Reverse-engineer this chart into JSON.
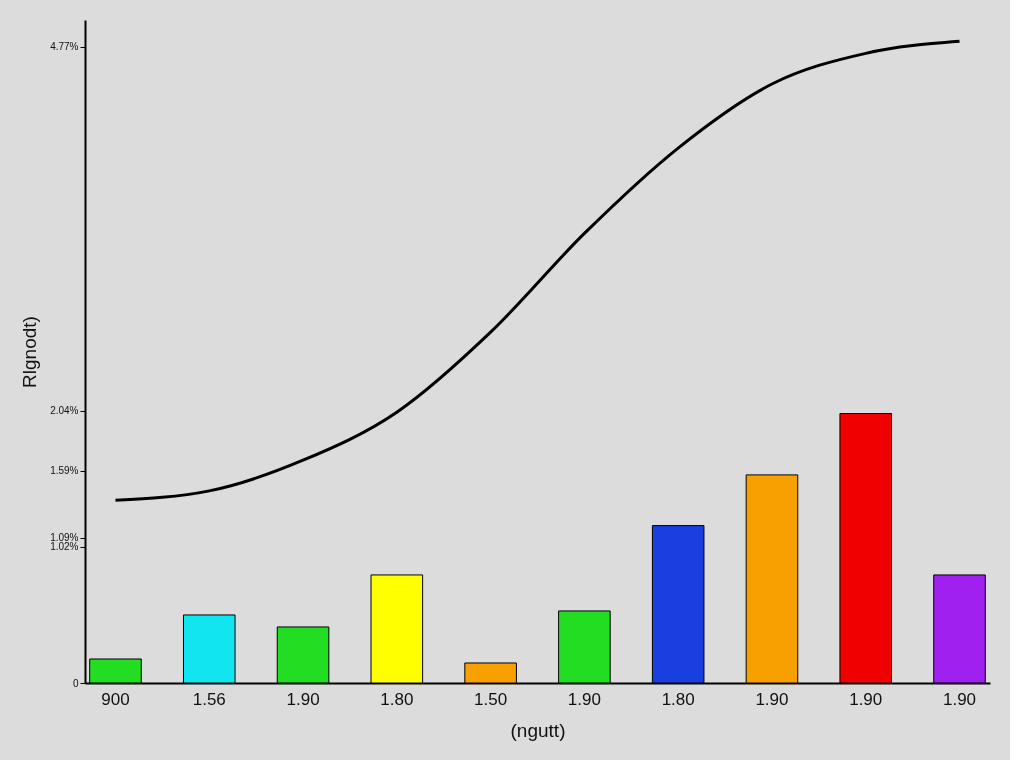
{
  "chart_data": {
    "type": "bar",
    "xlabel": "(ngutt)",
    "ylabel": "Rlgnodt)",
    "categories": [
      "900",
      "1.56",
      "1.90",
      "1.80",
      "1.50",
      "1.90",
      "1.80",
      "1.90",
      "1.90",
      "1.90"
    ],
    "series": [
      {
        "values": [
          0.18,
          0.51,
          0.42,
          0.81,
          0.15,
          0.54,
          1.18,
          1.56,
          2.02,
          0.81
        ],
        "colors": [
          "#22dd22",
          "#11e5f0",
          "#22dd22",
          "#ffff00",
          "#f7a000",
          "#22dd22",
          "#1a3fe0",
          "#f7a000",
          "#f00000",
          "#a020f0"
        ]
      },
      {
        "type": "line",
        "color": "#000000",
        "values": [
          1.37,
          1.44,
          1.67,
          2.03,
          2.63,
          3.37,
          4.01,
          4.49,
          4.72,
          4.81
        ]
      }
    ],
    "ylim": [
      0,
      4.97
    ],
    "yticks": [
      0,
      {
        "value": 1.02,
        "label": "1.02%"
      },
      {
        "value": 1.09,
        "label": "1.09%"
      },
      {
        "value": 1.59,
        "label": "1.59%"
      },
      {
        "value": 2.04,
        "label": "2.04%"
      },
      {
        "value": 4.77,
        "label": "4.77%"
      }
    ],
    "grid": false,
    "legend": false,
    "marker": "none",
    "line_style": "solid"
  }
}
